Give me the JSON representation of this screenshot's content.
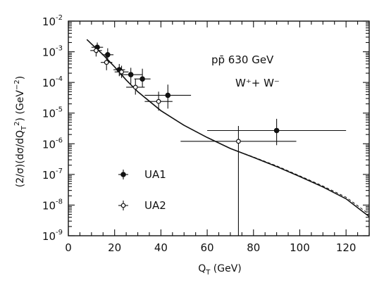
{
  "chart_data": {
    "type": "scatter",
    "xlabel": "Q_T (GeV)",
    "ylabel": "(2/σ)(dσ/dQ_T²) (GeV⁻²)",
    "xlim": [
      0,
      130
    ],
    "ylim": [
      1e-09,
      0.01
    ],
    "yscale": "log",
    "x_ticks": [
      "0",
      "20",
      "40",
      "60",
      "80",
      "100",
      "120"
    ],
    "y_ticks": [
      {
        "base": "10",
        "exp": "-9"
      },
      {
        "base": "10",
        "exp": "-8"
      },
      {
        "base": "10",
        "exp": "-7"
      },
      {
        "base": "10",
        "exp": "-6"
      },
      {
        "base": "10",
        "exp": "-5"
      },
      {
        "base": "10",
        "exp": "-4"
      },
      {
        "base": "10",
        "exp": "-3"
      },
      {
        "base": "10",
        "exp": "-2"
      }
    ],
    "annotations": {
      "process_line1": "pp̄   630  GeV",
      "process_line2": "W⁺+  W⁻"
    },
    "grid": false,
    "legend_position": "lower-left",
    "series": [
      {
        "name": "UA1",
        "marker": "filled-circle",
        "points": [
          {
            "x": 12.5,
            "y": 0.0014,
            "xerr": 2.5,
            "yerr_lo": 0.0009,
            "yerr_hi": 0.002
          },
          {
            "x": 17,
            "y": 0.0008,
            "xerr": 2.5,
            "yerr_lo": 0.00045,
            "yerr_hi": 0.0013
          },
          {
            "x": 22,
            "y": 0.00026,
            "xerr": 2.5,
            "yerr_lo": 0.00016,
            "yerr_hi": 0.0004
          },
          {
            "x": 27,
            "y": 0.00018,
            "xerr": 5,
            "yerr_lo": 9e-05,
            "yerr_hi": 0.0003
          },
          {
            "x": 32,
            "y": 0.00013,
            "xerr": 3.5,
            "yerr_lo": 7e-05,
            "yerr_hi": 0.00028
          },
          {
            "x": 43,
            "y": 3.8e-05,
            "xerr": 10,
            "yerr_lo": 1.4e-05,
            "yerr_hi": 8.5e-05
          },
          {
            "x": 90,
            "y": 2.7e-06,
            "xerr": 30,
            "yerr_lo": 9e-07,
            "yerr_hi": 6.5e-06
          }
        ]
      },
      {
        "name": "UA2",
        "marker": "open-circle",
        "points": [
          {
            "x": 12,
            "y": 0.0011,
            "xerr": 2.5,
            "yerr_lo": 0.0007,
            "yerr_hi": 0.0016
          },
          {
            "x": 16.5,
            "y": 0.00045,
            "xerr": 2.5,
            "yerr_lo": 0.00025,
            "yerr_hi": 0.0007
          },
          {
            "x": 23,
            "y": 0.00022,
            "xerr": 3,
            "yerr_lo": 0.00014,
            "yerr_hi": 0.00035
          },
          {
            "x": 29,
            "y": 7e-05,
            "xerr": 4,
            "yerr_lo": 4e-05,
            "yerr_hi": 0.00013
          },
          {
            "x": 39,
            "y": 2.4e-05,
            "xerr": 6,
            "yerr_lo": 1.2e-05,
            "yerr_hi": 5e-05
          },
          {
            "x": 73.5,
            "y": 1.2e-06,
            "xerr": 25,
            "yerr_lo": 1e-09,
            "yerr_hi": 3.8e-06
          }
        ]
      }
    ],
    "curves": [
      {
        "style": "solid",
        "x": [
          8,
          10,
          15,
          20,
          25,
          30,
          40,
          50,
          60,
          70,
          80,
          90,
          100,
          110,
          120,
          130
        ],
        "y": [
          0.0025,
          0.0018,
          0.0008,
          0.00032,
          0.00012,
          5e-05,
          1.2e-05,
          4e-06,
          1.6e-06,
          7e-07,
          3.6e-07,
          1.8e-07,
          8.5e-08,
          3.9e-08,
          1.6e-08,
          4.2e-09
        ]
      },
      {
        "style": "dashed",
        "x": [
          8,
          10,
          15,
          20,
          25,
          30,
          40,
          50,
          60,
          70,
          80,
          90,
          100,
          110,
          120,
          130
        ],
        "y": [
          0.0025,
          0.0018,
          0.0008,
          0.00032,
          0.00012,
          5e-05,
          1.2e-05,
          4e-06,
          1.6e-06,
          7e-07,
          3.7e-07,
          1.9e-07,
          9e-08,
          4.2e-08,
          1.8e-08,
          5e-09
        ]
      }
    ]
  }
}
